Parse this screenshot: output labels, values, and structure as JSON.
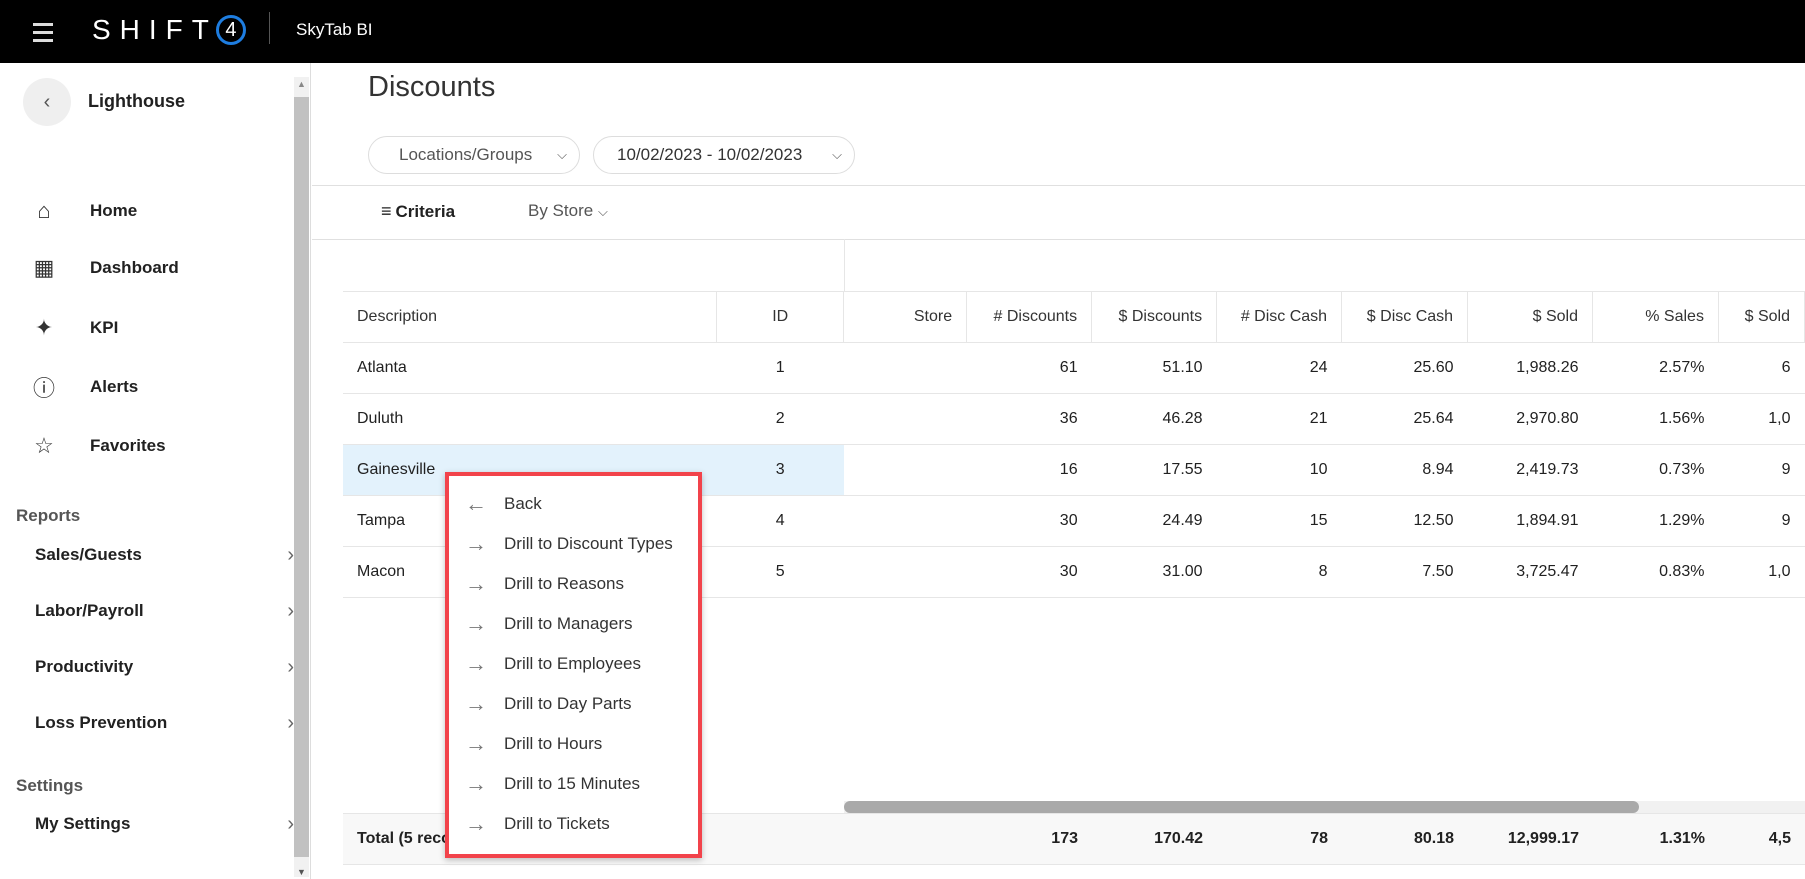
{
  "topbar": {
    "brand": "SHIFT",
    "brand_mark": "4",
    "app_title": "SkyTab BI",
    "menu_icon": "hamburger-icon"
  },
  "sidebar": {
    "title": "Lighthouse",
    "nav": [
      {
        "label": "Home",
        "icon": "home-icon"
      },
      {
        "label": "Dashboard",
        "icon": "grid-icon"
      },
      {
        "label": "KPI",
        "icon": "sparkle-icon"
      },
      {
        "label": "Alerts",
        "icon": "alert-icon"
      },
      {
        "label": "Favorites",
        "icon": "star-icon"
      }
    ],
    "reports_heading": "Reports",
    "reports": [
      {
        "label": "Sales/Guests"
      },
      {
        "label": "Labor/Payroll"
      },
      {
        "label": "Productivity"
      },
      {
        "label": "Loss Prevention"
      }
    ],
    "settings_heading": "Settings",
    "settings": [
      {
        "label": "My Settings"
      }
    ]
  },
  "main": {
    "title": "Discounts",
    "filters": {
      "locations": "Locations/Groups",
      "date_range": "10/02/2023 - 10/02/2023"
    },
    "criteria_label": "Criteria",
    "group_by": "By Store",
    "table": {
      "headers": [
        "Description",
        "ID",
        "Store",
        "# Discounts",
        "$ Discounts",
        "# Disc Cash",
        "$ Disc Cash",
        "$ Sold",
        "% Sales",
        "$ Sold"
      ],
      "rows": [
        [
          "Atlanta",
          "1",
          "",
          "61",
          "51.10",
          "24",
          "25.60",
          "1,988.26",
          "2.57%",
          "6"
        ],
        [
          "Duluth",
          "2",
          "",
          "36",
          "46.28",
          "21",
          "25.64",
          "2,970.80",
          "1.56%",
          "1,0"
        ],
        [
          "Gainesville",
          "3",
          "",
          "16",
          "17.55",
          "10",
          "8.94",
          "2,419.73",
          "0.73%",
          "9"
        ],
        [
          "Tampa",
          "4",
          "",
          "30",
          "24.49",
          "15",
          "12.50",
          "1,894.91",
          "1.29%",
          "9"
        ],
        [
          "Macon",
          "5",
          "",
          "30",
          "31.00",
          "8",
          "7.50",
          "3,725.47",
          "0.83%",
          "1,0"
        ]
      ],
      "selected_row": "Gainesville",
      "total": [
        "Total (5 records)",
        "",
        "",
        "173",
        "170.42",
        "78",
        "80.18",
        "12,999.17",
        "1.31%",
        "4,5"
      ]
    }
  },
  "context_menu": {
    "highlight_color": "#f2434b",
    "items": [
      {
        "label": "Back",
        "icon": "arrow-left-icon"
      },
      {
        "label": "Drill to Discount Types",
        "icon": "arrow-right-icon"
      },
      {
        "label": "Drill to Reasons",
        "icon": "arrow-right-icon"
      },
      {
        "label": "Drill to Managers",
        "icon": "arrow-right-icon"
      },
      {
        "label": "Drill to Employees",
        "icon": "arrow-right-icon"
      },
      {
        "label": "Drill to Day Parts",
        "icon": "arrow-right-icon"
      },
      {
        "label": "Drill to Hours",
        "icon": "arrow-right-icon"
      },
      {
        "label": "Drill to 15 Minutes",
        "icon": "arrow-right-icon"
      },
      {
        "label": "Drill to Tickets",
        "icon": "arrow-right-icon"
      }
    ]
  }
}
